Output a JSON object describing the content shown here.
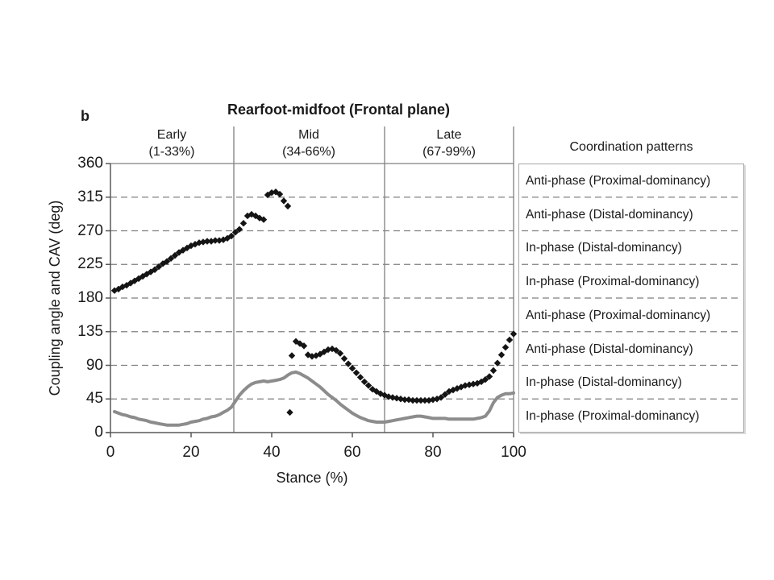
{
  "panel_label": "b",
  "title": "Rearfoot-midfoot (Frontal plane)",
  "sections": [
    {
      "name": "Early",
      "range": "(1-33%)"
    },
    {
      "name": "Mid",
      "range": "(34-66%)"
    },
    {
      "name": "Late",
      "range": "(67-99%)"
    }
  ],
  "legend": {
    "title": "Coordination patterns",
    "rows": [
      "Anti-phase (Proximal-dominancy)",
      "Anti-phase (Distal-dominancy)",
      "In-phase (Distal-dominancy)",
      "In-phase (Proximal-dominancy)",
      "Anti-phase (Proximal-dominancy)",
      "Anti-phase (Distal-dominancy)",
      "In-phase (Distal-dominancy)",
      "In-phase (Proximal-dominancy)"
    ]
  },
  "colors": {
    "scatter": "#141414",
    "line": "#8c8c8c",
    "grid": "#7f7f7f",
    "axis": "#595959",
    "boundary": "#808080",
    "legend_border": "#a6a6a6",
    "text": "#1a1a1a"
  },
  "chart_data": {
    "type": "scatter",
    "title": "Rearfoot-midfoot (Frontal plane)",
    "xlabel": "Stance (%)",
    "ylabel": "Coupling angle and CAV (deg)",
    "xlim": [
      0,
      100
    ],
    "ylim": [
      0,
      360
    ],
    "x_ticks": [
      0,
      20,
      40,
      60,
      80,
      100
    ],
    "y_ticks": [
      0,
      45,
      90,
      135,
      180,
      225,
      270,
      315,
      360
    ],
    "grid": "horizontal dashed lines every 45 deg; solid top line at 360",
    "legend_position": "right panel, one row per 45-deg band",
    "section_boundaries_pct": [
      30.6,
      68
    ],
    "series": [
      {
        "name": "Coupling angle",
        "type": "scatter",
        "marker": "diamond",
        "color": "#141414",
        "points": [
          [
            1,
            190
          ],
          [
            2,
            192
          ],
          [
            3,
            195
          ],
          [
            4,
            197
          ],
          [
            5,
            200
          ],
          [
            6,
            203
          ],
          [
            7,
            206
          ],
          [
            8,
            209
          ],
          [
            9,
            212
          ],
          [
            10,
            215
          ],
          [
            11,
            218
          ],
          [
            12,
            222
          ],
          [
            13,
            226
          ],
          [
            14,
            229
          ],
          [
            15,
            233
          ],
          [
            16,
            237
          ],
          [
            17,
            241
          ],
          [
            18,
            244
          ],
          [
            19,
            247
          ],
          [
            20,
            250
          ],
          [
            21,
            252
          ],
          [
            22,
            254
          ],
          [
            23,
            255
          ],
          [
            24,
            256
          ],
          [
            25,
            256
          ],
          [
            26,
            257
          ],
          [
            27,
            257
          ],
          [
            28,
            258
          ],
          [
            29,
            260
          ],
          [
            30,
            263
          ],
          [
            31,
            268
          ],
          [
            32,
            272
          ],
          [
            33,
            280
          ],
          [
            34,
            290
          ],
          [
            35,
            292
          ],
          [
            36,
            290
          ],
          [
            37,
            287
          ],
          [
            38,
            285
          ],
          [
            39,
            318
          ],
          [
            40,
            321
          ],
          [
            41,
            322
          ],
          [
            42,
            319
          ],
          [
            43,
            310
          ],
          [
            44,
            303
          ],
          [
            44.5,
            27
          ],
          [
            45,
            103
          ],
          [
            46,
            122
          ],
          [
            47,
            119
          ],
          [
            48,
            116
          ],
          [
            49,
            104
          ],
          [
            50,
            102
          ],
          [
            51,
            103
          ],
          [
            52,
            105
          ],
          [
            53,
            108
          ],
          [
            54,
            111
          ],
          [
            55,
            112
          ],
          [
            56,
            110
          ],
          [
            57,
            106
          ],
          [
            58,
            99
          ],
          [
            59,
            92
          ],
          [
            60,
            86
          ],
          [
            61,
            80
          ],
          [
            62,
            74
          ],
          [
            63,
            68
          ],
          [
            64,
            63
          ],
          [
            65,
            58
          ],
          [
            66,
            55
          ],
          [
            67,
            52
          ],
          [
            68,
            50
          ],
          [
            69,
            48
          ],
          [
            70,
            47
          ],
          [
            71,
            46
          ],
          [
            72,
            45
          ],
          [
            73,
            44
          ],
          [
            74,
            44
          ],
          [
            75,
            43
          ],
          [
            76,
            43
          ],
          [
            77,
            43
          ],
          [
            78,
            43
          ],
          [
            79,
            43
          ],
          [
            80,
            44
          ],
          [
            81,
            45
          ],
          [
            82,
            47
          ],
          [
            83,
            51
          ],
          [
            84,
            55
          ],
          [
            85,
            57
          ],
          [
            86,
            59
          ],
          [
            87,
            61
          ],
          [
            88,
            63
          ],
          [
            89,
            64
          ],
          [
            90,
            65
          ],
          [
            91,
            66
          ],
          [
            92,
            68
          ],
          [
            93,
            71
          ],
          [
            94,
            75
          ],
          [
            95,
            83
          ],
          [
            96,
            93
          ],
          [
            97,
            104
          ],
          [
            98,
            114
          ],
          [
            99,
            124
          ],
          [
            100,
            132
          ]
        ]
      },
      {
        "name": "CAV",
        "type": "line",
        "color": "#8c8c8c",
        "points": [
          [
            1,
            28
          ],
          [
            2,
            26
          ],
          [
            3,
            24
          ],
          [
            4,
            23
          ],
          [
            5,
            21
          ],
          [
            6,
            20
          ],
          [
            7,
            18
          ],
          [
            8,
            17
          ],
          [
            9,
            16
          ],
          [
            10,
            14
          ],
          [
            11,
            13
          ],
          [
            12,
            12
          ],
          [
            13,
            11
          ],
          [
            14,
            10
          ],
          [
            15,
            10
          ],
          [
            16,
            10
          ],
          [
            17,
            10
          ],
          [
            18,
            11
          ],
          [
            19,
            12
          ],
          [
            20,
            14
          ],
          [
            21,
            15
          ],
          [
            22,
            16
          ],
          [
            23,
            18
          ],
          [
            24,
            19
          ],
          [
            25,
            21
          ],
          [
            26,
            22
          ],
          [
            27,
            24
          ],
          [
            28,
            27
          ],
          [
            29,
            30
          ],
          [
            30,
            34
          ],
          [
            31,
            42
          ],
          [
            32,
            50
          ],
          [
            33,
            56
          ],
          [
            34,
            61
          ],
          [
            35,
            65
          ],
          [
            36,
            67
          ],
          [
            37,
            68
          ],
          [
            38,
            69
          ],
          [
            39,
            68
          ],
          [
            40,
            69
          ],
          [
            41,
            70
          ],
          [
            42,
            71
          ],
          [
            43,
            73
          ],
          [
            44,
            77
          ],
          [
            45,
            80
          ],
          [
            46,
            81
          ],
          [
            47,
            79
          ],
          [
            48,
            76
          ],
          [
            49,
            73
          ],
          [
            50,
            69
          ],
          [
            51,
            65
          ],
          [
            52,
            61
          ],
          [
            53,
            56
          ],
          [
            54,
            51
          ],
          [
            55,
            47
          ],
          [
            56,
            43
          ],
          [
            57,
            38
          ],
          [
            58,
            34
          ],
          [
            59,
            30
          ],
          [
            60,
            26
          ],
          [
            61,
            23
          ],
          [
            62,
            20
          ],
          [
            63,
            18
          ],
          [
            64,
            16
          ],
          [
            65,
            15
          ],
          [
            66,
            14
          ],
          [
            67,
            14
          ],
          [
            68,
            14
          ],
          [
            69,
            15
          ],
          [
            70,
            16
          ],
          [
            71,
            17
          ],
          [
            72,
            18
          ],
          [
            73,
            19
          ],
          [
            74,
            20
          ],
          [
            75,
            21
          ],
          [
            76,
            22
          ],
          [
            77,
            22
          ],
          [
            78,
            21
          ],
          [
            79,
            20
          ],
          [
            80,
            19
          ],
          [
            81,
            19
          ],
          [
            82,
            19
          ],
          [
            83,
            19
          ],
          [
            84,
            18
          ],
          [
            85,
            18
          ],
          [
            86,
            18
          ],
          [
            87,
            18
          ],
          [
            88,
            18
          ],
          [
            89,
            18
          ],
          [
            90,
            18
          ],
          [
            91,
            19
          ],
          [
            92,
            20
          ],
          [
            93,
            22
          ],
          [
            94,
            29
          ],
          [
            95,
            40
          ],
          [
            96,
            47
          ],
          [
            97,
            50
          ],
          [
            98,
            52
          ],
          [
            99,
            52
          ],
          [
            100,
            53
          ]
        ]
      }
    ]
  }
}
